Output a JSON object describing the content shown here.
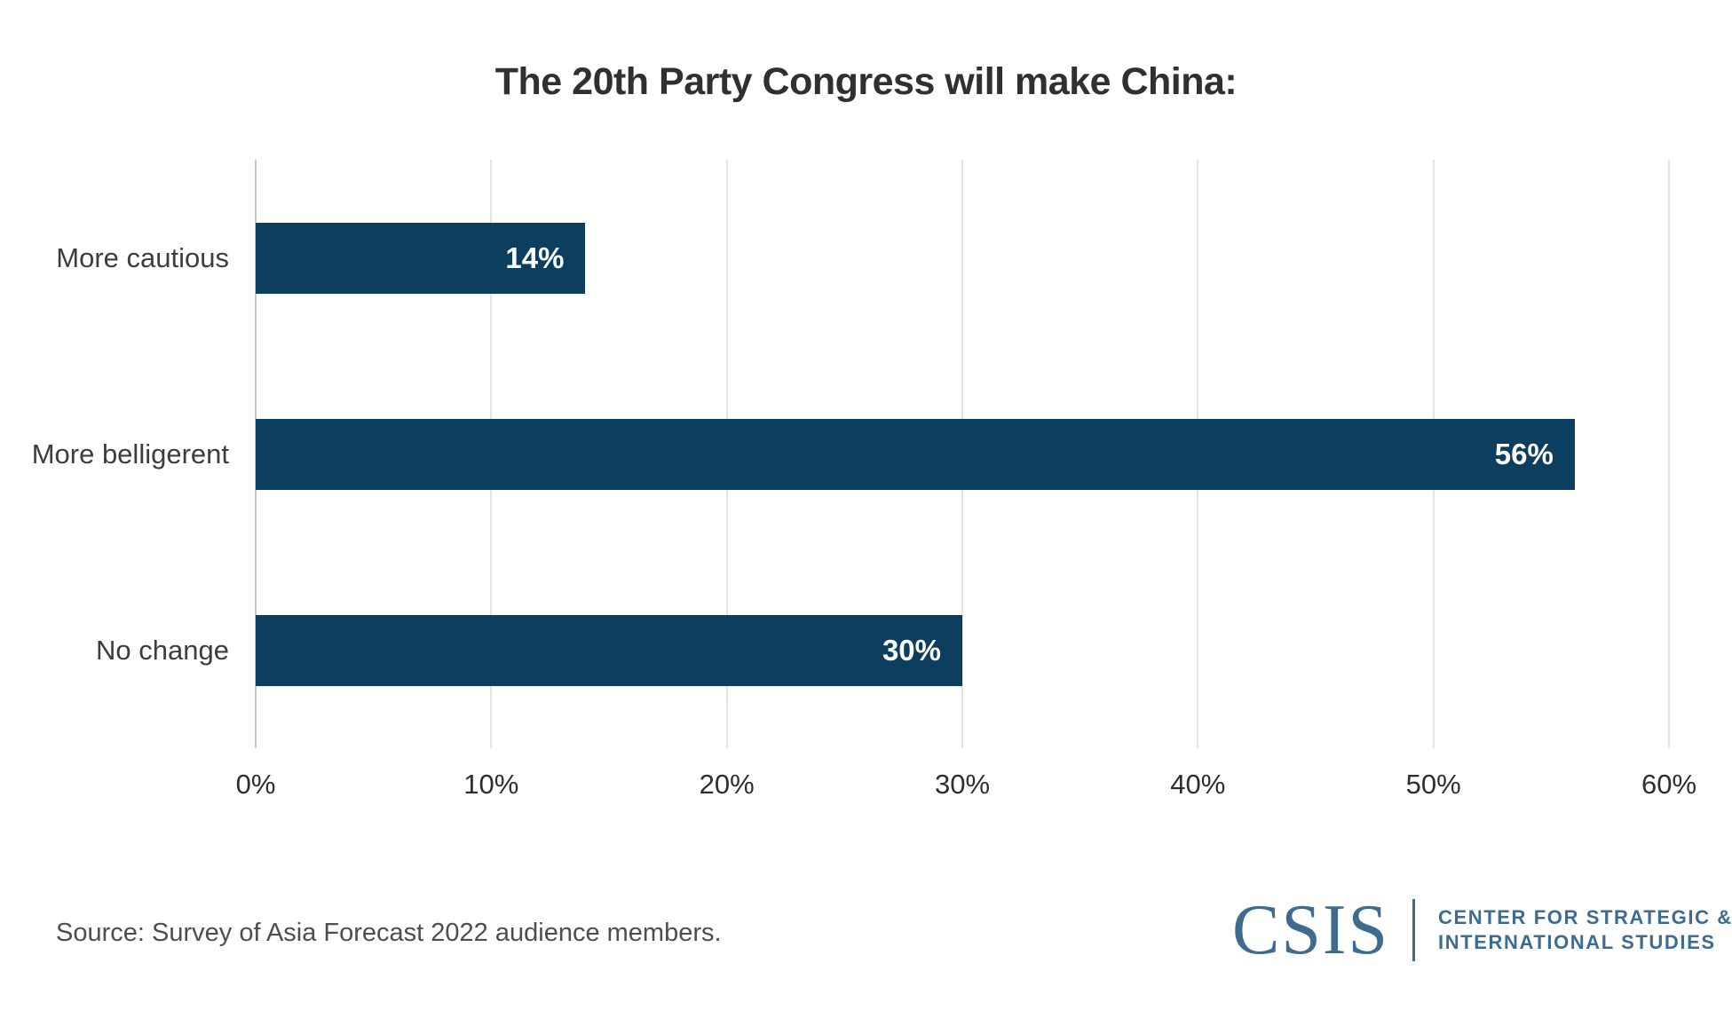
{
  "title": "The 20th Party Congress will make China:",
  "chart_data": {
    "type": "bar",
    "orientation": "horizontal",
    "title": "The 20th Party Congress will make China:",
    "categories": [
      "More cautious",
      "More belligerent",
      "No change"
    ],
    "values": [
      14,
      56,
      30
    ],
    "value_labels": [
      "14%",
      "56%",
      "30%"
    ],
    "xlim": [
      0,
      60
    ],
    "xticks": [
      0,
      10,
      20,
      30,
      40,
      50,
      60
    ],
    "xtick_labels": [
      "0%",
      "10%",
      "20%",
      "30%",
      "40%",
      "50%",
      "60%"
    ],
    "grid": "vertical-only",
    "legend": "none",
    "bar_color": "#0b3e5f",
    "value_label_color": "#ffffff"
  },
  "source": "Source: Survey of Asia Forecast 2022 audience members.",
  "logo": {
    "wordmark": "CSIS",
    "line1": "CENTER FOR STRATEGIC &",
    "line2": "INTERNATIONAL STUDIES",
    "color": "#3e6b90"
  },
  "colors": {
    "background": "#ffffff",
    "title_text": "#303030",
    "category_text": "#3d3d3d",
    "tick_text": "#2e2e2e",
    "source_text": "#4e4e4e",
    "gridline": "#e4e4e4",
    "axis_line": "#c6c6c6"
  }
}
